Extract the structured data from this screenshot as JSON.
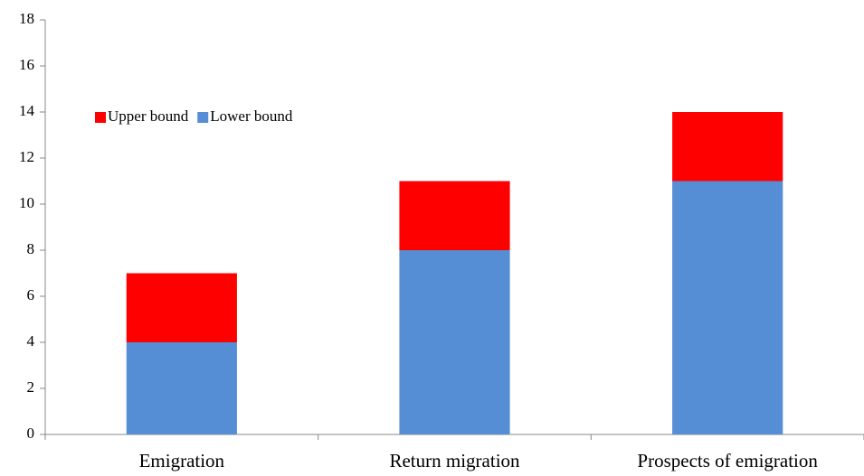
{
  "chart_data": {
    "type": "stacked_bar",
    "categories": [
      "Emigration",
      "Return migration",
      "Prospects of emigration"
    ],
    "series": [
      {
        "name": "Lower bound",
        "color": "#558ed5",
        "values": [
          4,
          8,
          11
        ]
      },
      {
        "name": "Upper bound",
        "color": "#ff0000",
        "values": [
          3,
          3,
          3
        ]
      }
    ],
    "ylim": [
      0,
      18
    ],
    "yticks": [
      0,
      2,
      4,
      6,
      8,
      10,
      12,
      14,
      16,
      18
    ],
    "grid": false,
    "legend": "upper-left"
  }
}
